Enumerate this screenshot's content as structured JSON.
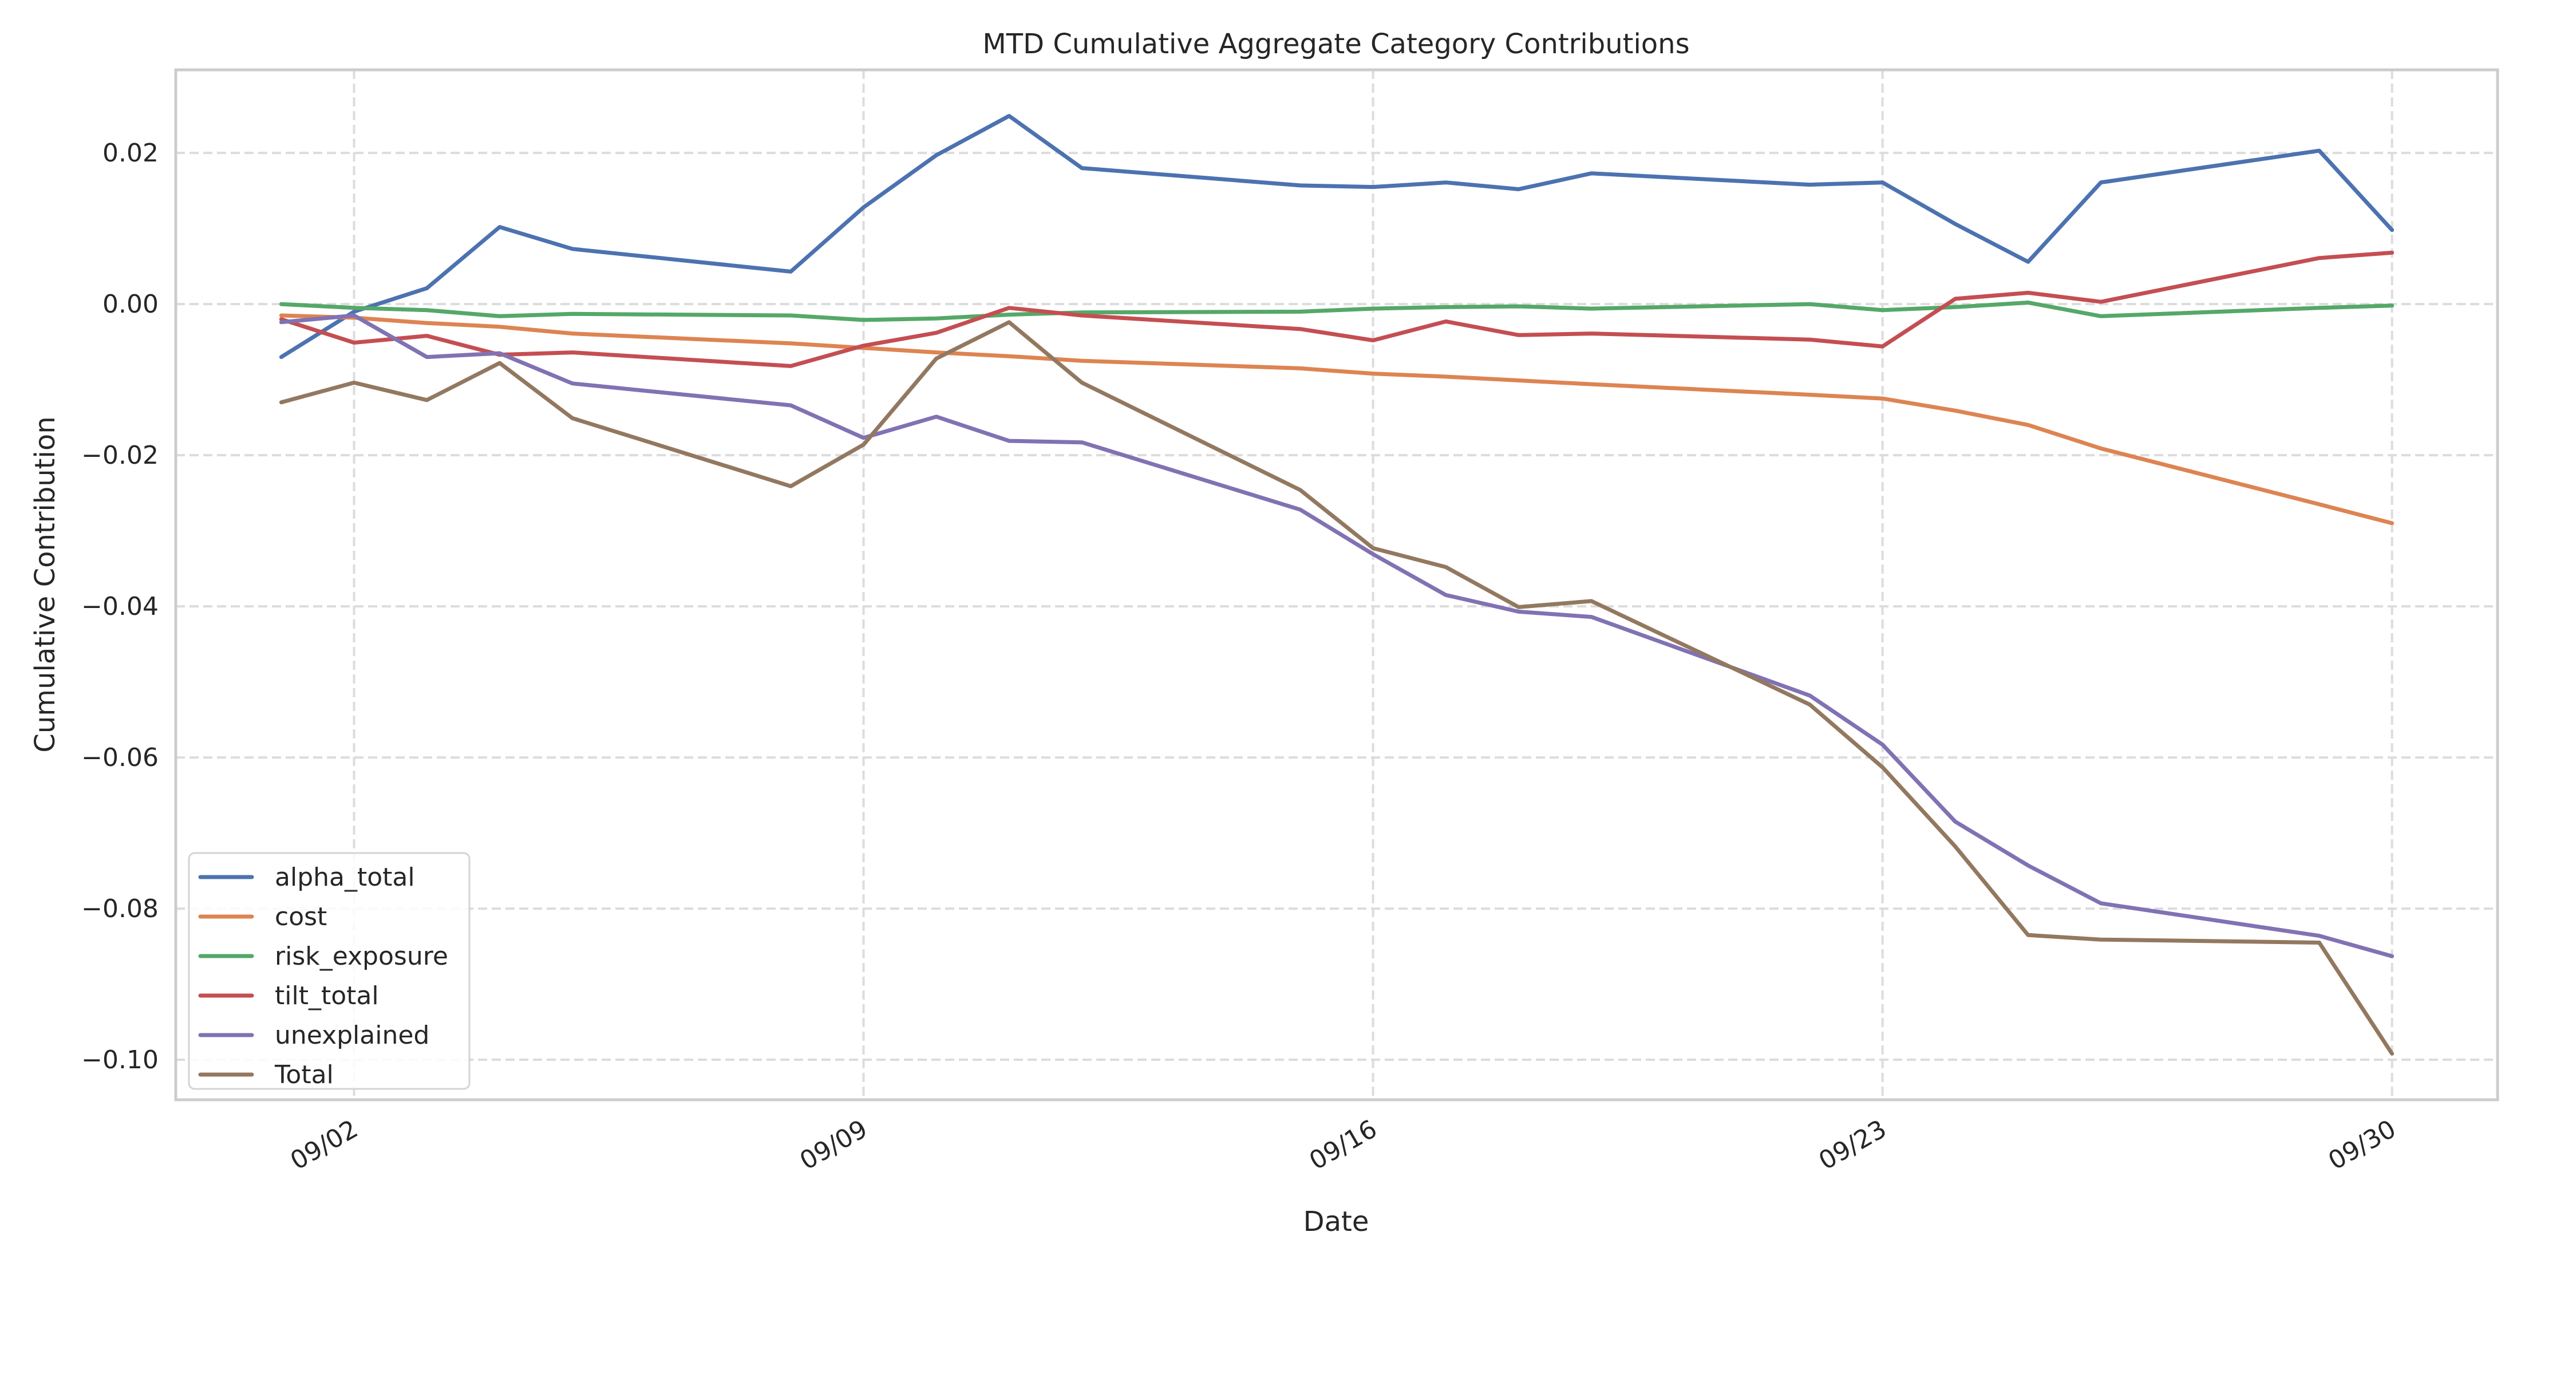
{
  "chart_data": {
    "type": "line",
    "title": "MTD Cumulative Aggregate Category Contributions",
    "xlabel": "Date",
    "ylabel": "Cumulative Contribution",
    "x": [
      "09/01",
      "09/02",
      "09/03",
      "09/04",
      "09/05",
      "09/08",
      "09/09",
      "09/10",
      "09/11",
      "09/12",
      "09/15",
      "09/16",
      "09/17",
      "09/18",
      "09/19",
      "09/22",
      "09/23",
      "09/24",
      "09/25",
      "09/26",
      "09/29",
      "09/30"
    ],
    "x_day_of_month": [
      1,
      2,
      3,
      4,
      5,
      8,
      9,
      10,
      11,
      12,
      15,
      16,
      17,
      18,
      19,
      22,
      23,
      24,
      25,
      26,
      29,
      30
    ],
    "xticks": [
      {
        "day": 2,
        "label": "09/02"
      },
      {
        "day": 9,
        "label": "09/09"
      },
      {
        "day": 16,
        "label": "09/16"
      },
      {
        "day": 23,
        "label": "09/23"
      },
      {
        "day": 30,
        "label": "09/30"
      }
    ],
    "xlim_days": [
      -0.45,
      31.45
    ],
    "ylim": [
      -0.1053,
      0.031
    ],
    "yticks": [
      {
        "value": 0.02,
        "label": "0.02"
      },
      {
        "value": 0.0,
        "label": "0.00"
      },
      {
        "value": -0.02,
        "label": "−0.02"
      },
      {
        "value": -0.04,
        "label": "−0.04"
      },
      {
        "value": -0.06,
        "label": "−0.06"
      },
      {
        "value": -0.08,
        "label": "−0.08"
      },
      {
        "value": -0.1,
        "label": "−0.10"
      }
    ],
    "grid": true,
    "legend_position": "lower-left",
    "series": [
      {
        "name": "alpha_total",
        "color": "#4c72b0",
        "values": [
          -0.007,
          -0.001,
          0.0021,
          0.0102,
          0.0073,
          0.0043,
          0.0128,
          0.0197,
          0.0249,
          0.018,
          0.0157,
          0.0155,
          0.0161,
          0.0152,
          0.0173,
          0.0158,
          0.0161,
          0.0106,
          0.0056,
          0.0161,
          0.0203,
          0.0098
        ]
      },
      {
        "name": "cost",
        "color": "#dd8452",
        "values": [
          -0.0015,
          -0.0018,
          -0.0025,
          -0.003,
          -0.0039,
          -0.0052,
          -0.0058,
          -0.0064,
          -0.0069,
          -0.0075,
          -0.0085,
          -0.0092,
          -0.0096,
          -0.0101,
          -0.0106,
          -0.012,
          -0.0125,
          -0.0141,
          -0.016,
          -0.0191,
          -0.0265,
          -0.029
        ]
      },
      {
        "name": "risk_exposure",
        "color": "#55a868",
        "values": [
          0.0,
          -0.0005,
          -0.0008,
          -0.0016,
          -0.0013,
          -0.0015,
          -0.0021,
          -0.0019,
          -0.0014,
          -0.0011,
          -0.001,
          -0.0006,
          -0.0004,
          -0.0003,
          -0.0006,
          0.0,
          -0.0008,
          -0.0004,
          0.0002,
          -0.0016,
          -0.0005,
          -0.0002
        ]
      },
      {
        "name": "tilt_total",
        "color": "#c44e52",
        "values": [
          -0.002,
          -0.0051,
          -0.0042,
          -0.0067,
          -0.0064,
          -0.0082,
          -0.0055,
          -0.0038,
          -0.0005,
          -0.0015,
          -0.0033,
          -0.0048,
          -0.0023,
          -0.0041,
          -0.0039,
          -0.0047,
          -0.0056,
          0.0007,
          0.0015,
          0.0003,
          0.0061,
          0.0068
        ]
      },
      {
        "name": "unexplained",
        "color": "#8172b3",
        "values": [
          -0.0024,
          -0.0015,
          -0.007,
          -0.0065,
          -0.0105,
          -0.0134,
          -0.0177,
          -0.0149,
          -0.0181,
          -0.0183,
          -0.0272,
          -0.0331,
          -0.0385,
          -0.0407,
          -0.0414,
          -0.0518,
          -0.0583,
          -0.0685,
          -0.0743,
          -0.0793,
          -0.0836,
          -0.0863
        ]
      },
      {
        "name": "Total",
        "color": "#937860",
        "values": [
          -0.013,
          -0.0104,
          -0.0127,
          -0.0078,
          -0.0151,
          -0.0241,
          -0.0186,
          -0.0072,
          -0.0024,
          -0.0104,
          -0.0246,
          -0.0323,
          -0.0348,
          -0.0401,
          -0.0393,
          -0.053,
          -0.0613,
          -0.0718,
          -0.0835,
          -0.0841,
          -0.0845,
          -0.0992
        ]
      }
    ]
  }
}
